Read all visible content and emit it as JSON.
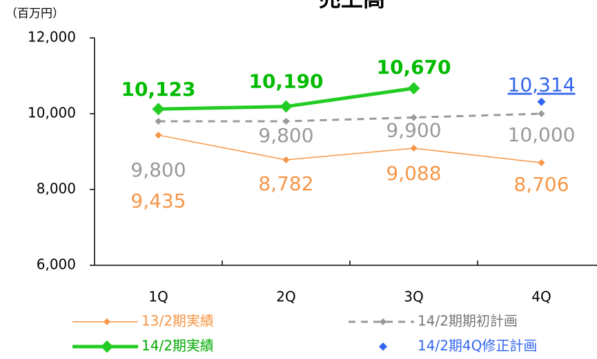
{
  "chart_data": {
    "type": "line",
    "title": "売上高",
    "ylabel": "（百万円）",
    "categories": [
      "1Q",
      "2Q",
      "3Q",
      "4Q"
    ],
    "ylim": [
      6000,
      12000
    ],
    "yticks": [
      {
        "value": 6000,
        "label": "6,000"
      },
      {
        "value": 8000,
        "label": "8,000"
      },
      {
        "value": 10000,
        "label": "10,000"
      },
      {
        "value": 12000,
        "label": "12,000"
      }
    ],
    "series": [
      {
        "name": "13/2期実績",
        "color": "#f79646",
        "values": [
          9435,
          8782,
          9088,
          8706
        ],
        "value_labels": [
          "9,435",
          "8,782",
          "9,088",
          "8,706"
        ]
      },
      {
        "name": "14/2期期初計画",
        "color": "#999999",
        "values": [
          9800,
          9800,
          9900,
          10000
        ],
        "value_labels": [
          "9,800",
          "9,800",
          "9,900",
          "10,000"
        ]
      },
      {
        "name": "14/2期実績",
        "color": "#22cc22",
        "values": [
          10123,
          10190,
          10670,
          null
        ],
        "value_labels": [
          "10,123",
          "10,190",
          "10,670",
          null
        ]
      },
      {
        "name": "14/2期4Q修正計画",
        "color": "#3366ee",
        "values": [
          null,
          null,
          null,
          10314
        ],
        "value_labels": [
          null,
          null,
          null,
          "10,314"
        ]
      }
    ]
  }
}
